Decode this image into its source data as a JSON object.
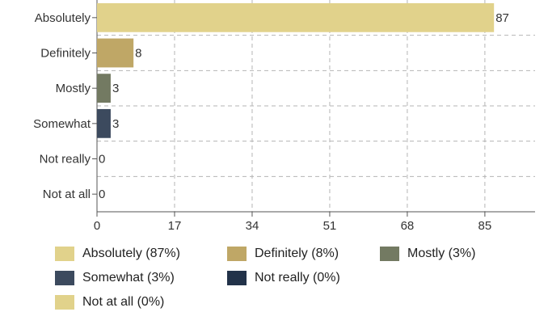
{
  "chart_data": {
    "type": "bar",
    "orientation": "horizontal",
    "categories": [
      "Absolutely",
      "Definitely",
      "Mostly",
      "Somewhat",
      "Not really",
      "Not at all"
    ],
    "values": [
      87,
      8,
      3,
      3,
      0,
      0
    ],
    "colors": [
      "#e1d28b",
      "#bfa766",
      "#737a62",
      "#3c4a5e",
      "#223249",
      "#e1d28b"
    ],
    "xticks": [
      0,
      17,
      34,
      51,
      68,
      85
    ],
    "xlim": [
      0,
      96
    ],
    "grid": true,
    "legend_position": "bottom",
    "legend": [
      {
        "label": "Absolutely (87%)",
        "color": "#e1d28b"
      },
      {
        "label": "Definitely (8%)",
        "color": "#bfa766"
      },
      {
        "label": "Mostly (3%)",
        "color": "#737a62"
      },
      {
        "label": "Somewhat (3%)",
        "color": "#3c4a5e"
      },
      {
        "label": "Not really (0%)",
        "color": "#223249"
      },
      {
        "label": "Not at all (0%)",
        "color": "#e1d28b"
      }
    ]
  }
}
